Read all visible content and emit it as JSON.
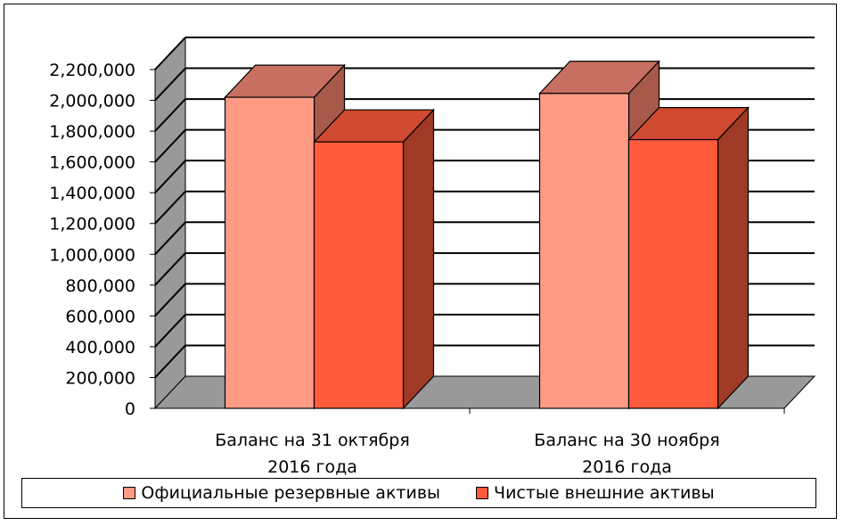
{
  "chart_data": {
    "type": "bar",
    "categories": [
      "Баланс на 31 октября 2016 года",
      "Баланс на 30 ноября 2016 года"
    ],
    "category_lines": [
      [
        "Баланс на 31 октября",
        "2016 года"
      ],
      [
        "Баланс на 30 ноября",
        "2016 года"
      ]
    ],
    "series": [
      {
        "name": "Официальные резервные активы",
        "values": [
          2020000,
          2045000
        ],
        "color": "#ff9b85",
        "side_color": "#a85a4a",
        "top_color": "#c76f60"
      },
      {
        "name": "Чистые внешние активы",
        "values": [
          1730000,
          1745000
        ],
        "color": "#ff5a3c",
        "side_color": "#9e3a25",
        "top_color": "#cf4a30"
      }
    ],
    "yticks": [
      "0",
      "200,000",
      "400,000",
      "600,000",
      "800,000",
      "1,000,000",
      "1,200,000",
      "1,400,000",
      "1,600,000",
      "1,800,000",
      "2,000,000",
      "2,200,000"
    ],
    "ylim": [
      0,
      2200000
    ],
    "grid": true,
    "legend_position": "bottom",
    "wall_color": "#999999"
  }
}
